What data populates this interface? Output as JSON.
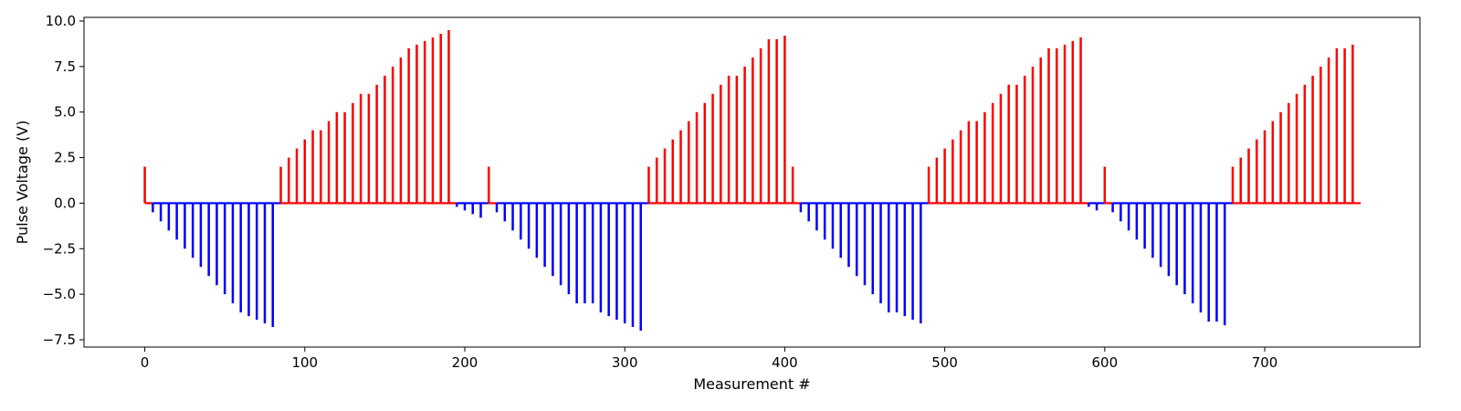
{
  "chart_data": {
    "type": "bar",
    "title": "",
    "xlabel": "Measurement #",
    "ylabel": "Pulse Voltage (V)",
    "xlim": [
      -38,
      797
    ],
    "ylim": [
      -7.9,
      10.2
    ],
    "xticks": [
      0,
      100,
      200,
      300,
      400,
      500,
      600,
      700
    ],
    "yticks": [
      -7.5,
      -5.0,
      -2.5,
      0.0,
      2.5,
      5.0,
      7.5,
      10.0
    ],
    "x_step": 5,
    "grid": false,
    "legend": "none",
    "colors": {
      "positive": "#ff0000",
      "negative": "#0000ff"
    },
    "pulses": [
      {
        "x": 0,
        "v": 2.0
      },
      {
        "x": 5,
        "v": -0.5
      },
      {
        "x": 10,
        "v": -1.0
      },
      {
        "x": 15,
        "v": -1.5
      },
      {
        "x": 20,
        "v": -2.0
      },
      {
        "x": 25,
        "v": -2.5
      },
      {
        "x": 30,
        "v": -3.0
      },
      {
        "x": 35,
        "v": -3.5
      },
      {
        "x": 40,
        "v": -4.0
      },
      {
        "x": 45,
        "v": -4.5
      },
      {
        "x": 50,
        "v": -5.0
      },
      {
        "x": 55,
        "v": -5.5
      },
      {
        "x": 60,
        "v": -6.0
      },
      {
        "x": 65,
        "v": -6.2
      },
      {
        "x": 70,
        "v": -6.4
      },
      {
        "x": 75,
        "v": -6.6
      },
      {
        "x": 80,
        "v": -6.8
      },
      {
        "x": 85,
        "v": 2.0
      },
      {
        "x": 90,
        "v": 2.5
      },
      {
        "x": 95,
        "v": 3.0
      },
      {
        "x": 100,
        "v": 3.5
      },
      {
        "x": 105,
        "v": 4.0
      },
      {
        "x": 110,
        "v": 4.0
      },
      {
        "x": 115,
        "v": 4.5
      },
      {
        "x": 120,
        "v": 5.0
      },
      {
        "x": 125,
        "v": 5.0
      },
      {
        "x": 130,
        "v": 5.5
      },
      {
        "x": 135,
        "v": 6.0
      },
      {
        "x": 140,
        "v": 6.0
      },
      {
        "x": 145,
        "v": 6.5
      },
      {
        "x": 150,
        "v": 7.0
      },
      {
        "x": 155,
        "v": 7.5
      },
      {
        "x": 160,
        "v": 8.0
      },
      {
        "x": 165,
        "v": 8.5
      },
      {
        "x": 170,
        "v": 8.7
      },
      {
        "x": 175,
        "v": 8.9
      },
      {
        "x": 180,
        "v": 9.1
      },
      {
        "x": 185,
        "v": 9.3
      },
      {
        "x": 190,
        "v": 9.5
      },
      {
        "x": 195,
        "v": -0.2
      },
      {
        "x": 200,
        "v": -0.4
      },
      {
        "x": 205,
        "v": -0.6
      },
      {
        "x": 210,
        "v": -0.8
      },
      {
        "x": 215,
        "v": 2.0
      },
      {
        "x": 220,
        "v": -0.5
      },
      {
        "x": 225,
        "v": -1.0
      },
      {
        "x": 230,
        "v": -1.5
      },
      {
        "x": 235,
        "v": -2.0
      },
      {
        "x": 240,
        "v": -2.5
      },
      {
        "x": 245,
        "v": -3.0
      },
      {
        "x": 250,
        "v": -3.5
      },
      {
        "x": 255,
        "v": -4.0
      },
      {
        "x": 260,
        "v": -4.5
      },
      {
        "x": 265,
        "v": -5.0
      },
      {
        "x": 270,
        "v": -5.5
      },
      {
        "x": 275,
        "v": -5.5
      },
      {
        "x": 280,
        "v": -5.5
      },
      {
        "x": 285,
        "v": -6.0
      },
      {
        "x": 290,
        "v": -6.2
      },
      {
        "x": 295,
        "v": -6.4
      },
      {
        "x": 300,
        "v": -6.6
      },
      {
        "x": 305,
        "v": -6.8
      },
      {
        "x": 310,
        "v": -7.0
      },
      {
        "x": 315,
        "v": 2.0
      },
      {
        "x": 320,
        "v": 2.5
      },
      {
        "x": 325,
        "v": 3.0
      },
      {
        "x": 330,
        "v": 3.5
      },
      {
        "x": 335,
        "v": 4.0
      },
      {
        "x": 340,
        "v": 4.5
      },
      {
        "x": 345,
        "v": 5.0
      },
      {
        "x": 350,
        "v": 5.5
      },
      {
        "x": 355,
        "v": 6.0
      },
      {
        "x": 360,
        "v": 6.5
      },
      {
        "x": 365,
        "v": 7.0
      },
      {
        "x": 370,
        "v": 7.0
      },
      {
        "x": 375,
        "v": 7.5
      },
      {
        "x": 380,
        "v": 8.0
      },
      {
        "x": 385,
        "v": 8.5
      },
      {
        "x": 390,
        "v": 9.0
      },
      {
        "x": 395,
        "v": 9.0
      },
      {
        "x": 400,
        "v": 9.2
      },
      {
        "x": 405,
        "v": 2.0
      },
      {
        "x": 410,
        "v": -0.5
      },
      {
        "x": 415,
        "v": -1.0
      },
      {
        "x": 420,
        "v": -1.5
      },
      {
        "x": 425,
        "v": -2.0
      },
      {
        "x": 430,
        "v": -2.5
      },
      {
        "x": 435,
        "v": -3.0
      },
      {
        "x": 440,
        "v": -3.5
      },
      {
        "x": 445,
        "v": -4.0
      },
      {
        "x": 450,
        "v": -4.5
      },
      {
        "x": 455,
        "v": -5.0
      },
      {
        "x": 460,
        "v": -5.5
      },
      {
        "x": 465,
        "v": -6.0
      },
      {
        "x": 470,
        "v": -6.0
      },
      {
        "x": 475,
        "v": -6.2
      },
      {
        "x": 480,
        "v": -6.4
      },
      {
        "x": 485,
        "v": -6.6
      },
      {
        "x": 490,
        "v": 2.0
      },
      {
        "x": 495,
        "v": 2.5
      },
      {
        "x": 500,
        "v": 3.0
      },
      {
        "x": 505,
        "v": 3.5
      },
      {
        "x": 510,
        "v": 4.0
      },
      {
        "x": 515,
        "v": 4.5
      },
      {
        "x": 520,
        "v": 4.5
      },
      {
        "x": 525,
        "v": 5.0
      },
      {
        "x": 530,
        "v": 5.5
      },
      {
        "x": 535,
        "v": 6.0
      },
      {
        "x": 540,
        "v": 6.5
      },
      {
        "x": 545,
        "v": 6.5
      },
      {
        "x": 550,
        "v": 7.0
      },
      {
        "x": 555,
        "v": 7.5
      },
      {
        "x": 560,
        "v": 8.0
      },
      {
        "x": 565,
        "v": 8.5
      },
      {
        "x": 570,
        "v": 8.5
      },
      {
        "x": 575,
        "v": 8.7
      },
      {
        "x": 580,
        "v": 8.9
      },
      {
        "x": 585,
        "v": 9.1
      },
      {
        "x": 590,
        "v": -0.2
      },
      {
        "x": 595,
        "v": -0.4
      },
      {
        "x": 600,
        "v": 2.0
      },
      {
        "x": 605,
        "v": -0.5
      },
      {
        "x": 610,
        "v": -1.0
      },
      {
        "x": 615,
        "v": -1.5
      },
      {
        "x": 620,
        "v": -2.0
      },
      {
        "x": 625,
        "v": -2.5
      },
      {
        "x": 630,
        "v": -3.0
      },
      {
        "x": 635,
        "v": -3.5
      },
      {
        "x": 640,
        "v": -4.0
      },
      {
        "x": 645,
        "v": -4.5
      },
      {
        "x": 650,
        "v": -5.0
      },
      {
        "x": 655,
        "v": -5.5
      },
      {
        "x": 660,
        "v": -6.0
      },
      {
        "x": 665,
        "v": -6.5
      },
      {
        "x": 670,
        "v": -6.5
      },
      {
        "x": 675,
        "v": -6.7
      },
      {
        "x": 680,
        "v": 2.0
      },
      {
        "x": 685,
        "v": 2.5
      },
      {
        "x": 690,
        "v": 3.0
      },
      {
        "x": 695,
        "v": 3.5
      },
      {
        "x": 700,
        "v": 4.0
      },
      {
        "x": 705,
        "v": 4.5
      },
      {
        "x": 710,
        "v": 5.0
      },
      {
        "x": 715,
        "v": 5.5
      },
      {
        "x": 720,
        "v": 6.0
      },
      {
        "x": 725,
        "v": 6.5
      },
      {
        "x": 730,
        "v": 7.0
      },
      {
        "x": 735,
        "v": 7.5
      },
      {
        "x": 740,
        "v": 8.0
      },
      {
        "x": 745,
        "v": 8.5
      },
      {
        "x": 750,
        "v": 8.5
      },
      {
        "x": 755,
        "v": 8.7
      }
    ]
  }
}
